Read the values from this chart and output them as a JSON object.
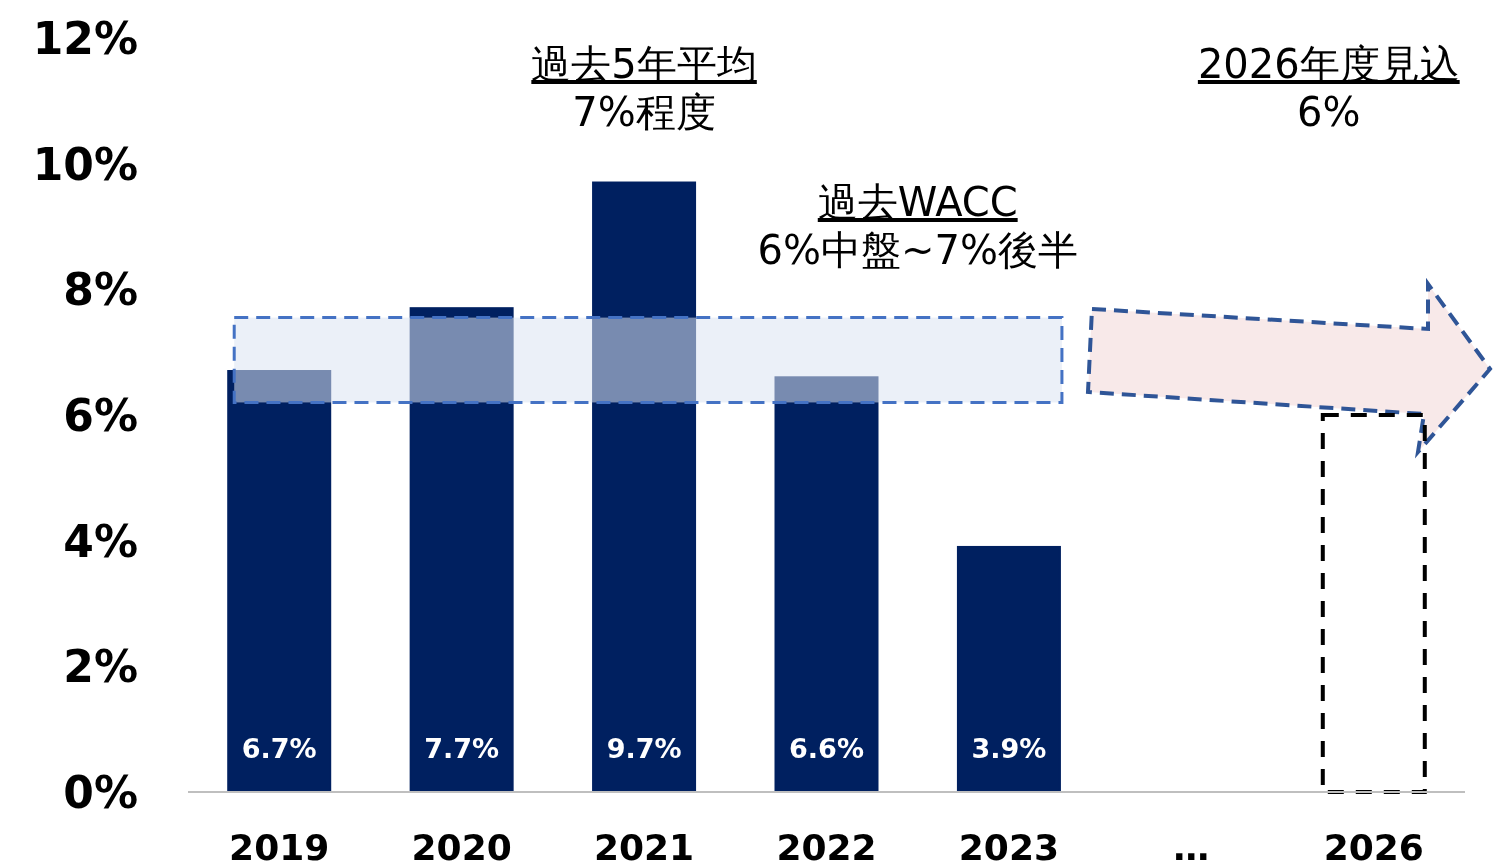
{
  "chart_data": {
    "type": "bar",
    "categories": [
      "2019",
      "2020",
      "2021",
      "2022",
      "2023",
      "…",
      "2026"
    ],
    "series": [
      {
        "color": "#002060",
        "values": [
          6.7,
          7.7,
          9.7,
          6.6,
          3.9,
          null,
          null
        ],
        "value_labels": [
          "6.7%",
          "7.7%",
          "9.7%",
          "6.6%",
          "3.9%",
          null,
          null
        ]
      },
      {
        "color": "#000000",
        "line_style": "dashed",
        "values": [
          null,
          null,
          null,
          null,
          null,
          null,
          6
        ]
      }
    ],
    "ylim": [
      0,
      12
    ],
    "yticks": [
      {
        "value": 0,
        "label": "0%"
      },
      {
        "value": 2,
        "label": "2%"
      },
      {
        "value": 4,
        "label": "4%"
      },
      {
        "value": 6,
        "label": "6%"
      },
      {
        "value": 8,
        "label": "8%"
      },
      {
        "value": 10,
        "label": "10%"
      },
      {
        "value": 12,
        "label": "12%"
      }
    ],
    "grid": false,
    "bands": [
      {
        "axis": "y",
        "from": 6.2,
        "to": 7.55,
        "label": "過去WACC\n6%中盤~7%後半",
        "color": "#dae3f3"
      }
    ],
    "annotations": [
      "過去5年平均\n7%程度",
      "2026年度見込\n6%"
    ]
  }
}
